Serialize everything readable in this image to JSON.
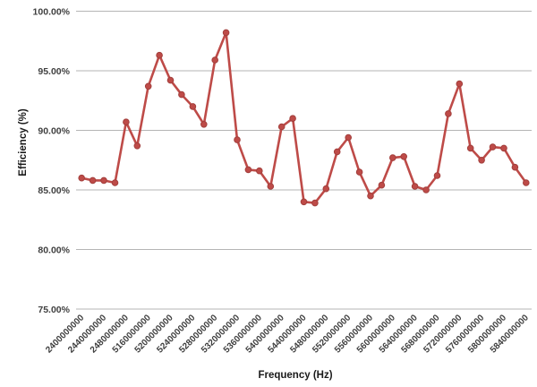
{
  "chart_data": {
    "type": "line",
    "title": "",
    "xlabel": "Frequency (Hz)",
    "ylabel": "Efficiency (%)",
    "ylim": [
      75,
      100
    ],
    "y_ticks": [
      75,
      80,
      85,
      90,
      95,
      100
    ],
    "y_tick_labels": [
      "75.00%",
      "80.00%",
      "85.00%",
      "90.00%",
      "95.00%",
      "100.00%"
    ],
    "x_tick_labels": [
      "2400000000",
      "2440000000",
      "2480000000",
      "5160000000",
      "5200000000",
      "5240000000",
      "5280000000",
      "5320000000",
      "5360000000",
      "5400000000",
      "5440000000",
      "5480000000",
      "5520000000",
      "5560000000",
      "5600000000",
      "5640000000",
      "5680000000",
      "5720000000",
      "5760000000",
      "5800000000",
      "5840000000"
    ],
    "x_tick_interval": 2,
    "grid": true,
    "legend": "none",
    "series": [
      {
        "name": "Efficiency",
        "marker": "circle",
        "values": [
          86.0,
          85.8,
          85.8,
          85.6,
          90.7,
          88.7,
          93.7,
          96.3,
          94.2,
          93.0,
          92.0,
          90.5,
          95.9,
          98.2,
          89.2,
          86.7,
          86.6,
          85.3,
          90.3,
          91.0,
          84.0,
          83.9,
          85.1,
          88.2,
          89.4,
          86.5,
          84.5,
          85.4,
          87.7,
          87.8,
          85.3,
          85.0,
          86.2,
          91.4,
          93.9,
          88.5,
          87.5,
          88.6,
          88.5,
          86.9,
          85.6
        ]
      }
    ],
    "colors": {
      "line": "#be4b48",
      "marker_fill": "#be4b48",
      "marker_edge": "#a23f3c",
      "grid": "#b5b5b5",
      "tick_label": "#3f3f3f",
      "axis_title": "#1a1a1a",
      "background": "#ffffff"
    }
  }
}
